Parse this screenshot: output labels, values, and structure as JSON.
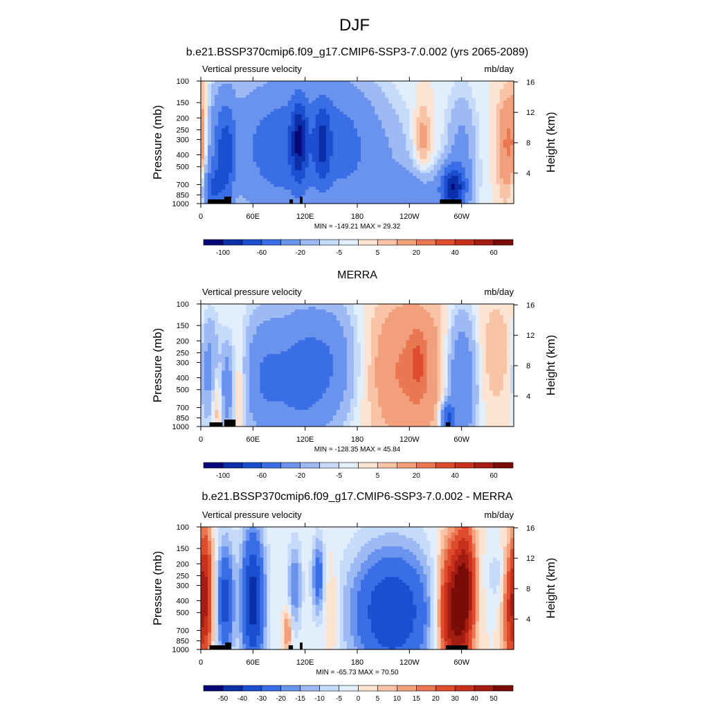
{
  "figure_title": "DJF",
  "colors": {
    "cmap_blue_red": [
      "#08087a",
      "#0b2fa8",
      "#1c4fd0",
      "#3a6ee6",
      "#6a93ee",
      "#9dbaf4",
      "#c6daf9",
      "#e2eefc",
      "#fde3d2",
      "#f8c3a6",
      "#f2a07c",
      "#ea7652",
      "#df4c2d",
      "#c9301b",
      "#a51d12",
      "#7a0c08"
    ]
  },
  "chart_data": [
    {
      "type": "heatmap",
      "title": "b.e21.BSSP370cmip6.f09_g17.CMIP6-SSP3-7.0.002 (yrs 2065-2089)",
      "variable": "Vertical pressure velocity",
      "units": "mb/day",
      "ylabel": "Pressure (mb)",
      "ylabel_right": "Height (km)",
      "x_ticks": [
        "0",
        "60E",
        "120E",
        "180",
        "120W",
        "60W"
      ],
      "y_ticks": [
        "100",
        "150",
        "200",
        "250",
        "300",
        "400",
        "500",
        "700",
        "850",
        "1000"
      ],
      "y_ticks_right": [
        "16",
        "12",
        "8",
        "4"
      ],
      "stats": "MIN = -149.21  MAX =  29.32",
      "min": -149.21,
      "max": 29.32,
      "colorbar_labels": [
        "-100",
        "-60",
        "-20",
        "-5",
        "5",
        "20",
        "40",
        "60"
      ],
      "colorbar_levels": [
        -120,
        -100,
        -80,
        -60,
        -40,
        -20,
        -10,
        -5,
        0,
        5,
        10,
        20,
        30,
        40,
        50,
        60,
        70
      ],
      "ylim": [
        1000,
        100
      ],
      "xlim": [
        0,
        360
      ],
      "terrain": [
        [
          8,
          30,
          0
        ],
        [
          27,
          35,
          1
        ],
        [
          102,
          106,
          0
        ],
        [
          114,
          117,
          1
        ],
        [
          275,
          300,
          0
        ]
      ],
      "features": [
        {
          "lon": 28,
          "p": 400,
          "sx": 12,
          "sp": 0.8,
          "amp": -60
        },
        {
          "lon": 12,
          "p": 780,
          "sx": 8,
          "sp": 0.3,
          "amp": -40
        },
        {
          "lon": 42,
          "p": 500,
          "sx": 5,
          "sp": 0.9,
          "amp": 15
        },
        {
          "lon": 2,
          "p": 350,
          "sx": 5,
          "sp": 1.0,
          "amp": 12
        },
        {
          "lon": 92,
          "p": 350,
          "sx": 38,
          "sp": 0.9,
          "amp": -55
        },
        {
          "lon": 113,
          "p": 300,
          "sx": 6,
          "sp": 0.55,
          "amp": -55
        },
        {
          "lon": 140,
          "p": 320,
          "sx": 6,
          "sp": 0.55,
          "amp": -40
        },
        {
          "lon": 160,
          "p": 300,
          "sx": 28,
          "sp": 0.9,
          "amp": -35
        },
        {
          "lon": 205,
          "p": 500,
          "sx": 30,
          "sp": 0.9,
          "amp": -18
        },
        {
          "lon": 255,
          "p": 300,
          "sx": 7,
          "sp": 0.5,
          "amp": 16
        },
        {
          "lon": 245,
          "p": 800,
          "sx": 30,
          "sp": 0.3,
          "amp": -25
        },
        {
          "lon": 290,
          "p": 750,
          "sx": 10,
          "sp": 0.3,
          "amp": -80
        },
        {
          "lon": 300,
          "p": 400,
          "sx": 12,
          "sp": 0.8,
          "amp": -25
        },
        {
          "lon": 352,
          "p": 330,
          "sx": 8,
          "sp": 0.7,
          "amp": 22
        }
      ]
    },
    {
      "type": "heatmap",
      "title": "MERRA",
      "variable": "Vertical pressure velocity",
      "units": "mb/day",
      "ylabel": "Pressure (mb)",
      "ylabel_right": "Height (km)",
      "x_ticks": [
        "0",
        "60E",
        "120E",
        "180",
        "120W",
        "60W"
      ],
      "y_ticks": [
        "100",
        "150",
        "200",
        "250",
        "300",
        "400",
        "500",
        "700",
        "850",
        "1000"
      ],
      "y_ticks_right": [
        "16",
        "12",
        "8",
        "4"
      ],
      "stats": "MIN = -128.35  MAX =  45.84",
      "min": -128.35,
      "max": 45.84,
      "colorbar_labels": [
        "-100",
        "-60",
        "-20",
        "-5",
        "5",
        "20",
        "40",
        "60"
      ],
      "colorbar_levels": [
        -120,
        -100,
        -80,
        -60,
        -40,
        -20,
        -10,
        -5,
        0,
        5,
        10,
        20,
        30,
        40,
        50,
        60,
        70
      ],
      "ylim": [
        1000,
        100
      ],
      "xlim": [
        0,
        360
      ],
      "terrain": [
        [
          10,
          25,
          0
        ],
        [
          27,
          33,
          1
        ],
        [
          33,
          40,
          1
        ],
        [
          282,
          287,
          0
        ]
      ],
      "features": [
        {
          "lon": 10,
          "p": 350,
          "sx": 8,
          "sp": 0.7,
          "amp": -30
        },
        {
          "lon": 18,
          "p": 600,
          "sx": 5,
          "sp": 0.5,
          "amp": 18
        },
        {
          "lon": 30,
          "p": 500,
          "sx": 5,
          "sp": 0.6,
          "amp": -30
        },
        {
          "lon": 45,
          "p": 500,
          "sx": 4,
          "sp": 0.6,
          "amp": 12
        },
        {
          "lon": 70,
          "p": 400,
          "sx": 15,
          "sp": 0.8,
          "amp": -30
        },
        {
          "lon": 110,
          "p": 400,
          "sx": 25,
          "sp": 0.9,
          "amp": -45
        },
        {
          "lon": 150,
          "p": 300,
          "sx": 22,
          "sp": 0.8,
          "amp": -30
        },
        {
          "lon": 240,
          "p": 350,
          "sx": 35,
          "sp": 1.0,
          "amp": 22
        },
        {
          "lon": 250,
          "p": 300,
          "sx": 6,
          "sp": 0.4,
          "amp": 15
        },
        {
          "lon": 300,
          "p": 450,
          "sx": 12,
          "sp": 0.9,
          "amp": -45
        },
        {
          "lon": 284,
          "p": 850,
          "sx": 5,
          "sp": 0.2,
          "amp": -60
        },
        {
          "lon": 340,
          "p": 250,
          "sx": 18,
          "sp": 0.8,
          "amp": 8
        }
      ]
    },
    {
      "type": "heatmap",
      "title": "b.e21.BSSP370cmip6.f09_g17.CMIP6-SSP3-7.0.002 - MERRA",
      "variable": "Vertical pressure velocity",
      "units": "mb/day",
      "ylabel": "Pressure (mb)",
      "ylabel_right": "Height (km)",
      "x_ticks": [
        "0",
        "60E",
        "120E",
        "180",
        "120W",
        "60W"
      ],
      "y_ticks": [
        "100",
        "150",
        "200",
        "250",
        "300",
        "400",
        "500",
        "700",
        "850",
        "1000"
      ],
      "y_ticks_right": [
        "16",
        "12",
        "8",
        "4"
      ],
      "stats": "MIN = -65.73  MAX =  70.50",
      "min": -65.73,
      "max": 70.5,
      "colorbar_labels": [
        "-50",
        "-40",
        "-30",
        "-20",
        "-15",
        "-10",
        "-5",
        "0",
        "5",
        "10",
        "15",
        "20",
        "30",
        "40",
        "50"
      ],
      "colorbar_levels": [
        -60,
        -50,
        -40,
        -30,
        -20,
        -15,
        -10,
        -5,
        0,
        5,
        10,
        15,
        20,
        30,
        40,
        50,
        60
      ],
      "ylim": [
        1000,
        100
      ],
      "xlim": [
        0,
        360
      ],
      "terrain": [
        [
          10,
          28,
          0
        ],
        [
          28,
          35,
          1
        ],
        [
          101,
          106,
          0
        ],
        [
          114,
          117,
          1
        ],
        [
          282,
          307,
          0
        ]
      ],
      "features": [
        {
          "lon": 5,
          "p": 350,
          "sx": 6,
          "sp": 0.9,
          "amp": 40
        },
        {
          "lon": 28,
          "p": 400,
          "sx": 7,
          "sp": 0.8,
          "amp": -35
        },
        {
          "lon": 60,
          "p": 400,
          "sx": 10,
          "sp": 1.0,
          "amp": -45
        },
        {
          "lon": 100,
          "p": 700,
          "sx": 3,
          "sp": 0.3,
          "amp": 20
        },
        {
          "lon": 108,
          "p": 300,
          "sx": 6,
          "sp": 0.6,
          "amp": -20
        },
        {
          "lon": 135,
          "p": 250,
          "sx": 5,
          "sp": 0.5,
          "amp": -25
        },
        {
          "lon": 150,
          "p": 500,
          "sx": 6,
          "sp": 0.7,
          "amp": 10
        },
        {
          "lon": 220,
          "p": 500,
          "sx": 35,
          "sp": 0.9,
          "amp": -40
        },
        {
          "lon": 290,
          "p": 500,
          "sx": 12,
          "sp": 0.9,
          "amp": 55
        },
        {
          "lon": 305,
          "p": 300,
          "sx": 8,
          "sp": 0.8,
          "amp": 40
        },
        {
          "lon": 340,
          "p": 250,
          "sx": 8,
          "sp": 0.4,
          "amp": -8
        },
        {
          "lon": 355,
          "p": 500,
          "sx": 6,
          "sp": 0.8,
          "amp": 25
        }
      ]
    }
  ]
}
